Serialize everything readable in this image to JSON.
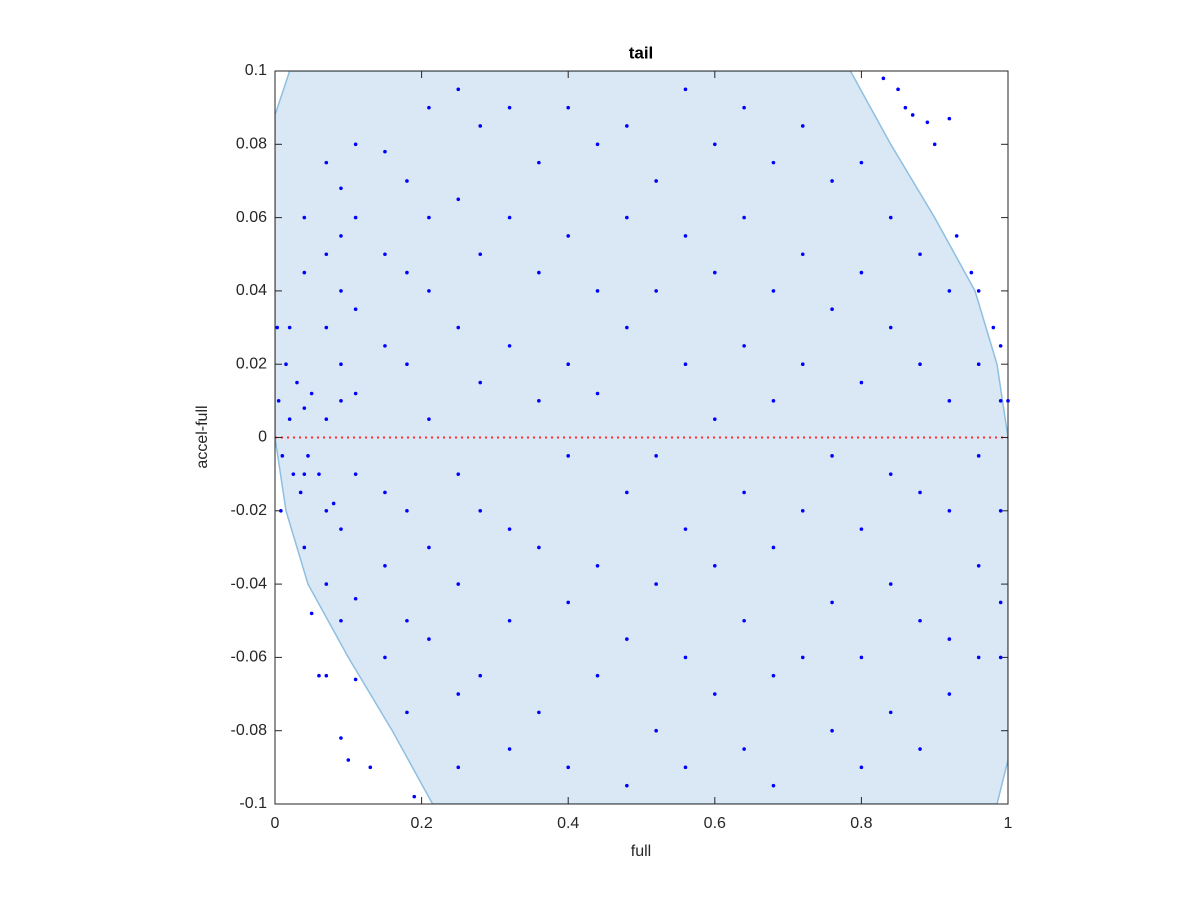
{
  "chart_data": {
    "type": "scatter",
    "title": "tail",
    "x_label": "full",
    "y_label": "accel-full",
    "xlim": [
      0,
      1
    ],
    "ylim": [
      -0.1,
      0.1
    ],
    "xticks": [
      0,
      0.2,
      0.4,
      0.6,
      0.8,
      1
    ],
    "yticks": [
      -0.1,
      -0.08,
      -0.06,
      -0.04,
      -0.02,
      0,
      0.02,
      0.04,
      0.06,
      0.08,
      0.1
    ],
    "color": "#0000ff",
    "region": {
      "color": "#d9e8f4",
      "edge_color": "#8fbfe0",
      "x": [
        0,
        0.015,
        0.045,
        0.1,
        0.16,
        0.215,
        0.985,
        1,
        1,
        0.985,
        0.955,
        0.9,
        0.84,
        0.785,
        0.02,
        0
      ],
      "y": [
        0,
        -0.02,
        -0.04,
        -0.06,
        -0.08,
        -0.1,
        -0.1,
        -0.088,
        0,
        0.02,
        0.04,
        0.06,
        0.08,
        0.1,
        0.1,
        0.088
      ]
    },
    "reference_line": {
      "y": 0,
      "color": "#ff3030"
    },
    "points": [
      [
        0.005,
        0.01
      ],
      [
        0.01,
        -0.005
      ],
      [
        0.015,
        0.02
      ],
      [
        0.02,
        0.005
      ],
      [
        0.025,
        -0.01
      ],
      [
        0.03,
        0.015
      ],
      [
        0.035,
        -0.015
      ],
      [
        0.04,
        0.008
      ],
      [
        0.045,
        -0.005
      ],
      [
        0.05,
        0.012
      ],
      [
        0.06,
        -0.01
      ],
      [
        0.07,
        0.005
      ],
      [
        0.08,
        -0.018
      ],
      [
        0.09,
        0.01
      ],
      [
        0.003,
        0.03
      ],
      [
        0.008,
        -0.02
      ],
      [
        0.02,
        0.03
      ],
      [
        0.05,
        -0.048
      ],
      [
        0.06,
        -0.065
      ],
      [
        0.07,
        -0.065
      ],
      [
        0.09,
        -0.082
      ],
      [
        0.1,
        -0.088
      ],
      [
        0.11,
        -0.066
      ],
      [
        0.13,
        -0.09
      ],
      [
        0.19,
        -0.098
      ],
      [
        0.83,
        0.098
      ],
      [
        0.85,
        0.095
      ],
      [
        0.86,
        0.09
      ],
      [
        0.87,
        0.088
      ],
      [
        0.89,
        0.086
      ],
      [
        0.9,
        0.08
      ],
      [
        0.92,
        0.087
      ],
      [
        0.93,
        0.055
      ],
      [
        0.95,
        0.045
      ],
      [
        0.96,
        0.04
      ],
      [
        0.98,
        0.03
      ],
      [
        0.99,
        0.025
      ],
      [
        1.0,
        0.01
      ],
      [
        0.04,
        0.06
      ],
      [
        0.04,
        0.045
      ],
      [
        0.04,
        -0.03
      ],
      [
        0.04,
        -0.01
      ],
      [
        0.07,
        0.075
      ],
      [
        0.07,
        0.05
      ],
      [
        0.07,
        0.03
      ],
      [
        0.07,
        -0.02
      ],
      [
        0.07,
        -0.04
      ],
      [
        0.09,
        0.068
      ],
      [
        0.09,
        0.055
      ],
      [
        0.09,
        0.04
      ],
      [
        0.09,
        0.02
      ],
      [
        0.09,
        -0.025
      ],
      [
        0.09,
        -0.05
      ],
      [
        0.11,
        0.08
      ],
      [
        0.11,
        0.06
      ],
      [
        0.11,
        0.035
      ],
      [
        0.11,
        0.012
      ],
      [
        0.11,
        -0.01
      ],
      [
        0.11,
        -0.044
      ],
      [
        0.15,
        0.078
      ],
      [
        0.15,
        0.05
      ],
      [
        0.15,
        0.025
      ],
      [
        0.15,
        -0.015
      ],
      [
        0.15,
        -0.035
      ],
      [
        0.15,
        -0.06
      ],
      [
        0.18,
        0.07
      ],
      [
        0.18,
        0.045
      ],
      [
        0.18,
        0.02
      ],
      [
        0.18,
        -0.02
      ],
      [
        0.18,
        -0.05
      ],
      [
        0.18,
        -0.075
      ],
      [
        0.21,
        0.09
      ],
      [
        0.21,
        0.06
      ],
      [
        0.21,
        0.04
      ],
      [
        0.21,
        0.005
      ],
      [
        0.21,
        -0.03
      ],
      [
        0.21,
        -0.055
      ],
      [
        0.25,
        0.095
      ],
      [
        0.25,
        0.065
      ],
      [
        0.25,
        0.03
      ],
      [
        0.25,
        -0.01
      ],
      [
        0.25,
        -0.04
      ],
      [
        0.25,
        -0.07
      ],
      [
        0.25,
        -0.09
      ],
      [
        0.28,
        0.085
      ],
      [
        0.28,
        0.05
      ],
      [
        0.28,
        0.015
      ],
      [
        0.28,
        -0.02
      ],
      [
        0.28,
        -0.065
      ],
      [
        0.32,
        0.09
      ],
      [
        0.32,
        0.06
      ],
      [
        0.32,
        0.025
      ],
      [
        0.32,
        -0.025
      ],
      [
        0.32,
        -0.05
      ],
      [
        0.32,
        -0.085
      ],
      [
        0.36,
        0.075
      ],
      [
        0.36,
        0.045
      ],
      [
        0.36,
        0.01
      ],
      [
        0.36,
        -0.03
      ],
      [
        0.36,
        -0.075
      ],
      [
        0.4,
        0.09
      ],
      [
        0.4,
        0.055
      ],
      [
        0.4,
        0.02
      ],
      [
        0.4,
        -0.005
      ],
      [
        0.4,
        -0.045
      ],
      [
        0.4,
        -0.09
      ],
      [
        0.44,
        0.08
      ],
      [
        0.44,
        0.04
      ],
      [
        0.44,
        0.012
      ],
      [
        0.44,
        -0.035
      ],
      [
        0.44,
        -0.065
      ],
      [
        0.48,
        0.085
      ],
      [
        0.48,
        0.06
      ],
      [
        0.48,
        0.03
      ],
      [
        0.48,
        -0.015
      ],
      [
        0.48,
        -0.055
      ],
      [
        0.48,
        -0.095
      ],
      [
        0.52,
        0.07
      ],
      [
        0.52,
        0.04
      ],
      [
        0.52,
        -0.005
      ],
      [
        0.52,
        -0.04
      ],
      [
        0.52,
        -0.08
      ],
      [
        0.56,
        0.095
      ],
      [
        0.56,
        0.055
      ],
      [
        0.56,
        0.02
      ],
      [
        0.56,
        -0.025
      ],
      [
        0.56,
        -0.06
      ],
      [
        0.56,
        -0.09
      ],
      [
        0.6,
        0.08
      ],
      [
        0.6,
        0.045
      ],
      [
        0.6,
        0.005
      ],
      [
        0.6,
        -0.035
      ],
      [
        0.6,
        -0.07
      ],
      [
        0.64,
        0.09
      ],
      [
        0.64,
        0.06
      ],
      [
        0.64,
        0.025
      ],
      [
        0.64,
        -0.015
      ],
      [
        0.64,
        -0.05
      ],
      [
        0.64,
        -0.085
      ],
      [
        0.68,
        0.075
      ],
      [
        0.68,
        0.04
      ],
      [
        0.68,
        0.01
      ],
      [
        0.68,
        -0.03
      ],
      [
        0.68,
        -0.065
      ],
      [
        0.68,
        -0.095
      ],
      [
        0.72,
        0.085
      ],
      [
        0.72,
        0.05
      ],
      [
        0.72,
        0.02
      ],
      [
        0.72,
        -0.02
      ],
      [
        0.72,
        -0.06
      ],
      [
        0.76,
        0.07
      ],
      [
        0.76,
        0.035
      ],
      [
        0.76,
        -0.005
      ],
      [
        0.76,
        -0.045
      ],
      [
        0.76,
        -0.08
      ],
      [
        0.8,
        0.075
      ],
      [
        0.8,
        0.045
      ],
      [
        0.8,
        0.015
      ],
      [
        0.8,
        -0.025
      ],
      [
        0.8,
        -0.06
      ],
      [
        0.8,
        -0.09
      ],
      [
        0.84,
        0.06
      ],
      [
        0.84,
        0.03
      ],
      [
        0.84,
        -0.01
      ],
      [
        0.84,
        -0.04
      ],
      [
        0.84,
        -0.075
      ],
      [
        0.88,
        0.05
      ],
      [
        0.88,
        0.02
      ],
      [
        0.88,
        -0.015
      ],
      [
        0.88,
        -0.05
      ],
      [
        0.88,
        -0.085
      ],
      [
        0.92,
        0.04
      ],
      [
        0.92,
        0.01
      ],
      [
        0.92,
        -0.02
      ],
      [
        0.92,
        -0.055
      ],
      [
        0.92,
        -0.07
      ],
      [
        0.96,
        0.02
      ],
      [
        0.96,
        -0.005
      ],
      [
        0.96,
        -0.035
      ],
      [
        0.96,
        -0.06
      ],
      [
        0.99,
        0.01
      ],
      [
        0.99,
        -0.02
      ],
      [
        0.99,
        -0.045
      ],
      [
        0.99,
        -0.06
      ]
    ]
  }
}
